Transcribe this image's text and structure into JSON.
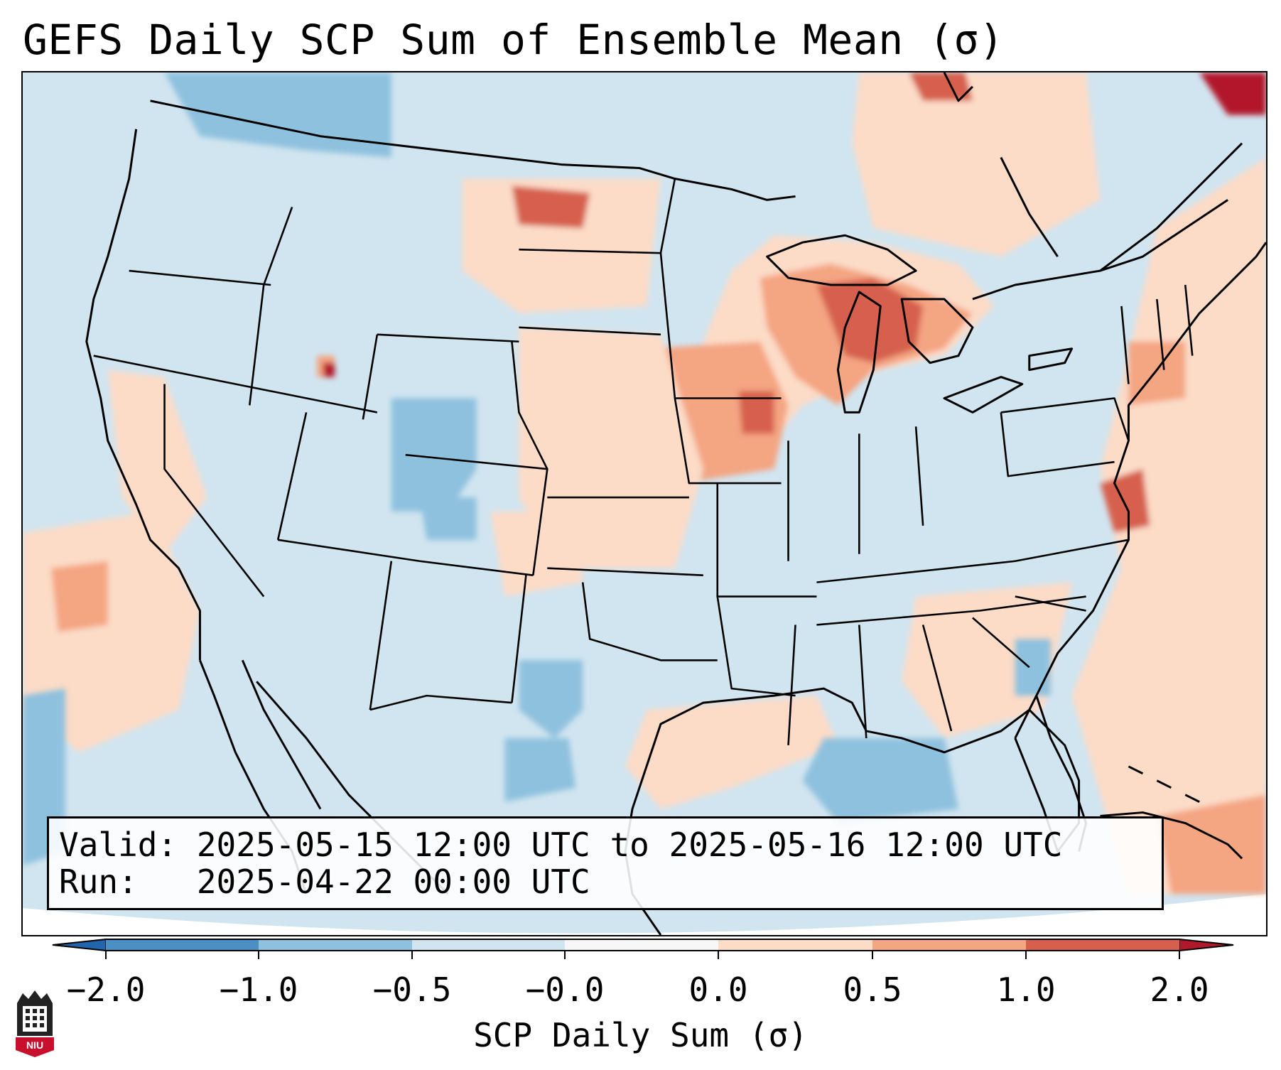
{
  "title": "GEFS Daily SCP Sum of Ensemble Mean (σ)",
  "info": {
    "valid_line": "Valid: 2025-05-15 12:00 UTC to 2025-05-16 12:00 UTC",
    "run_line": "Run:   2025-04-22 00:00 UTC"
  },
  "colorbar": {
    "label": "SCP Daily Sum (σ)",
    "ticks": [
      "−2.0",
      "−1.0",
      "−0.5",
      "−0.0",
      "0.0",
      "0.5",
      "1.0",
      "2.0"
    ],
    "colors": [
      "#4a90c4",
      "#8ec1de",
      "#d1e5f0",
      "#fcdbc7",
      "#f4a582",
      "#d6604d"
    ],
    "extend_low_color": "#2166ac",
    "extend_high_color": "#b2182b"
  },
  "logo": {
    "text": "NIU",
    "icon": "niu-logo-icon"
  },
  "map": {
    "background_color": "#d1e5f0",
    "hotspots": [
      {
        "region": "Great Lakes",
        "level": 1.0
      },
      {
        "region": "Upper Midwest / Iowa",
        "level": 0.7
      },
      {
        "region": "North Dakota",
        "level": 1.0
      },
      {
        "region": "Mid-Atlantic coast",
        "level": 0.7
      },
      {
        "region": "Southern Quebec",
        "level": 0.5
      },
      {
        "region": "Gulf of Mexico coast",
        "level": 0.3
      },
      {
        "region": "Southeast US",
        "level": 0.3
      }
    ],
    "cold_spots": [
      {
        "region": "Colorado",
        "level": -0.6
      },
      {
        "region": "Western Gulf of Mexico",
        "level": -0.6
      },
      {
        "region": "Central Texas",
        "level": -0.6
      },
      {
        "region": "Pacific Northwest / Southern Canada",
        "level": -0.6
      }
    ]
  }
}
